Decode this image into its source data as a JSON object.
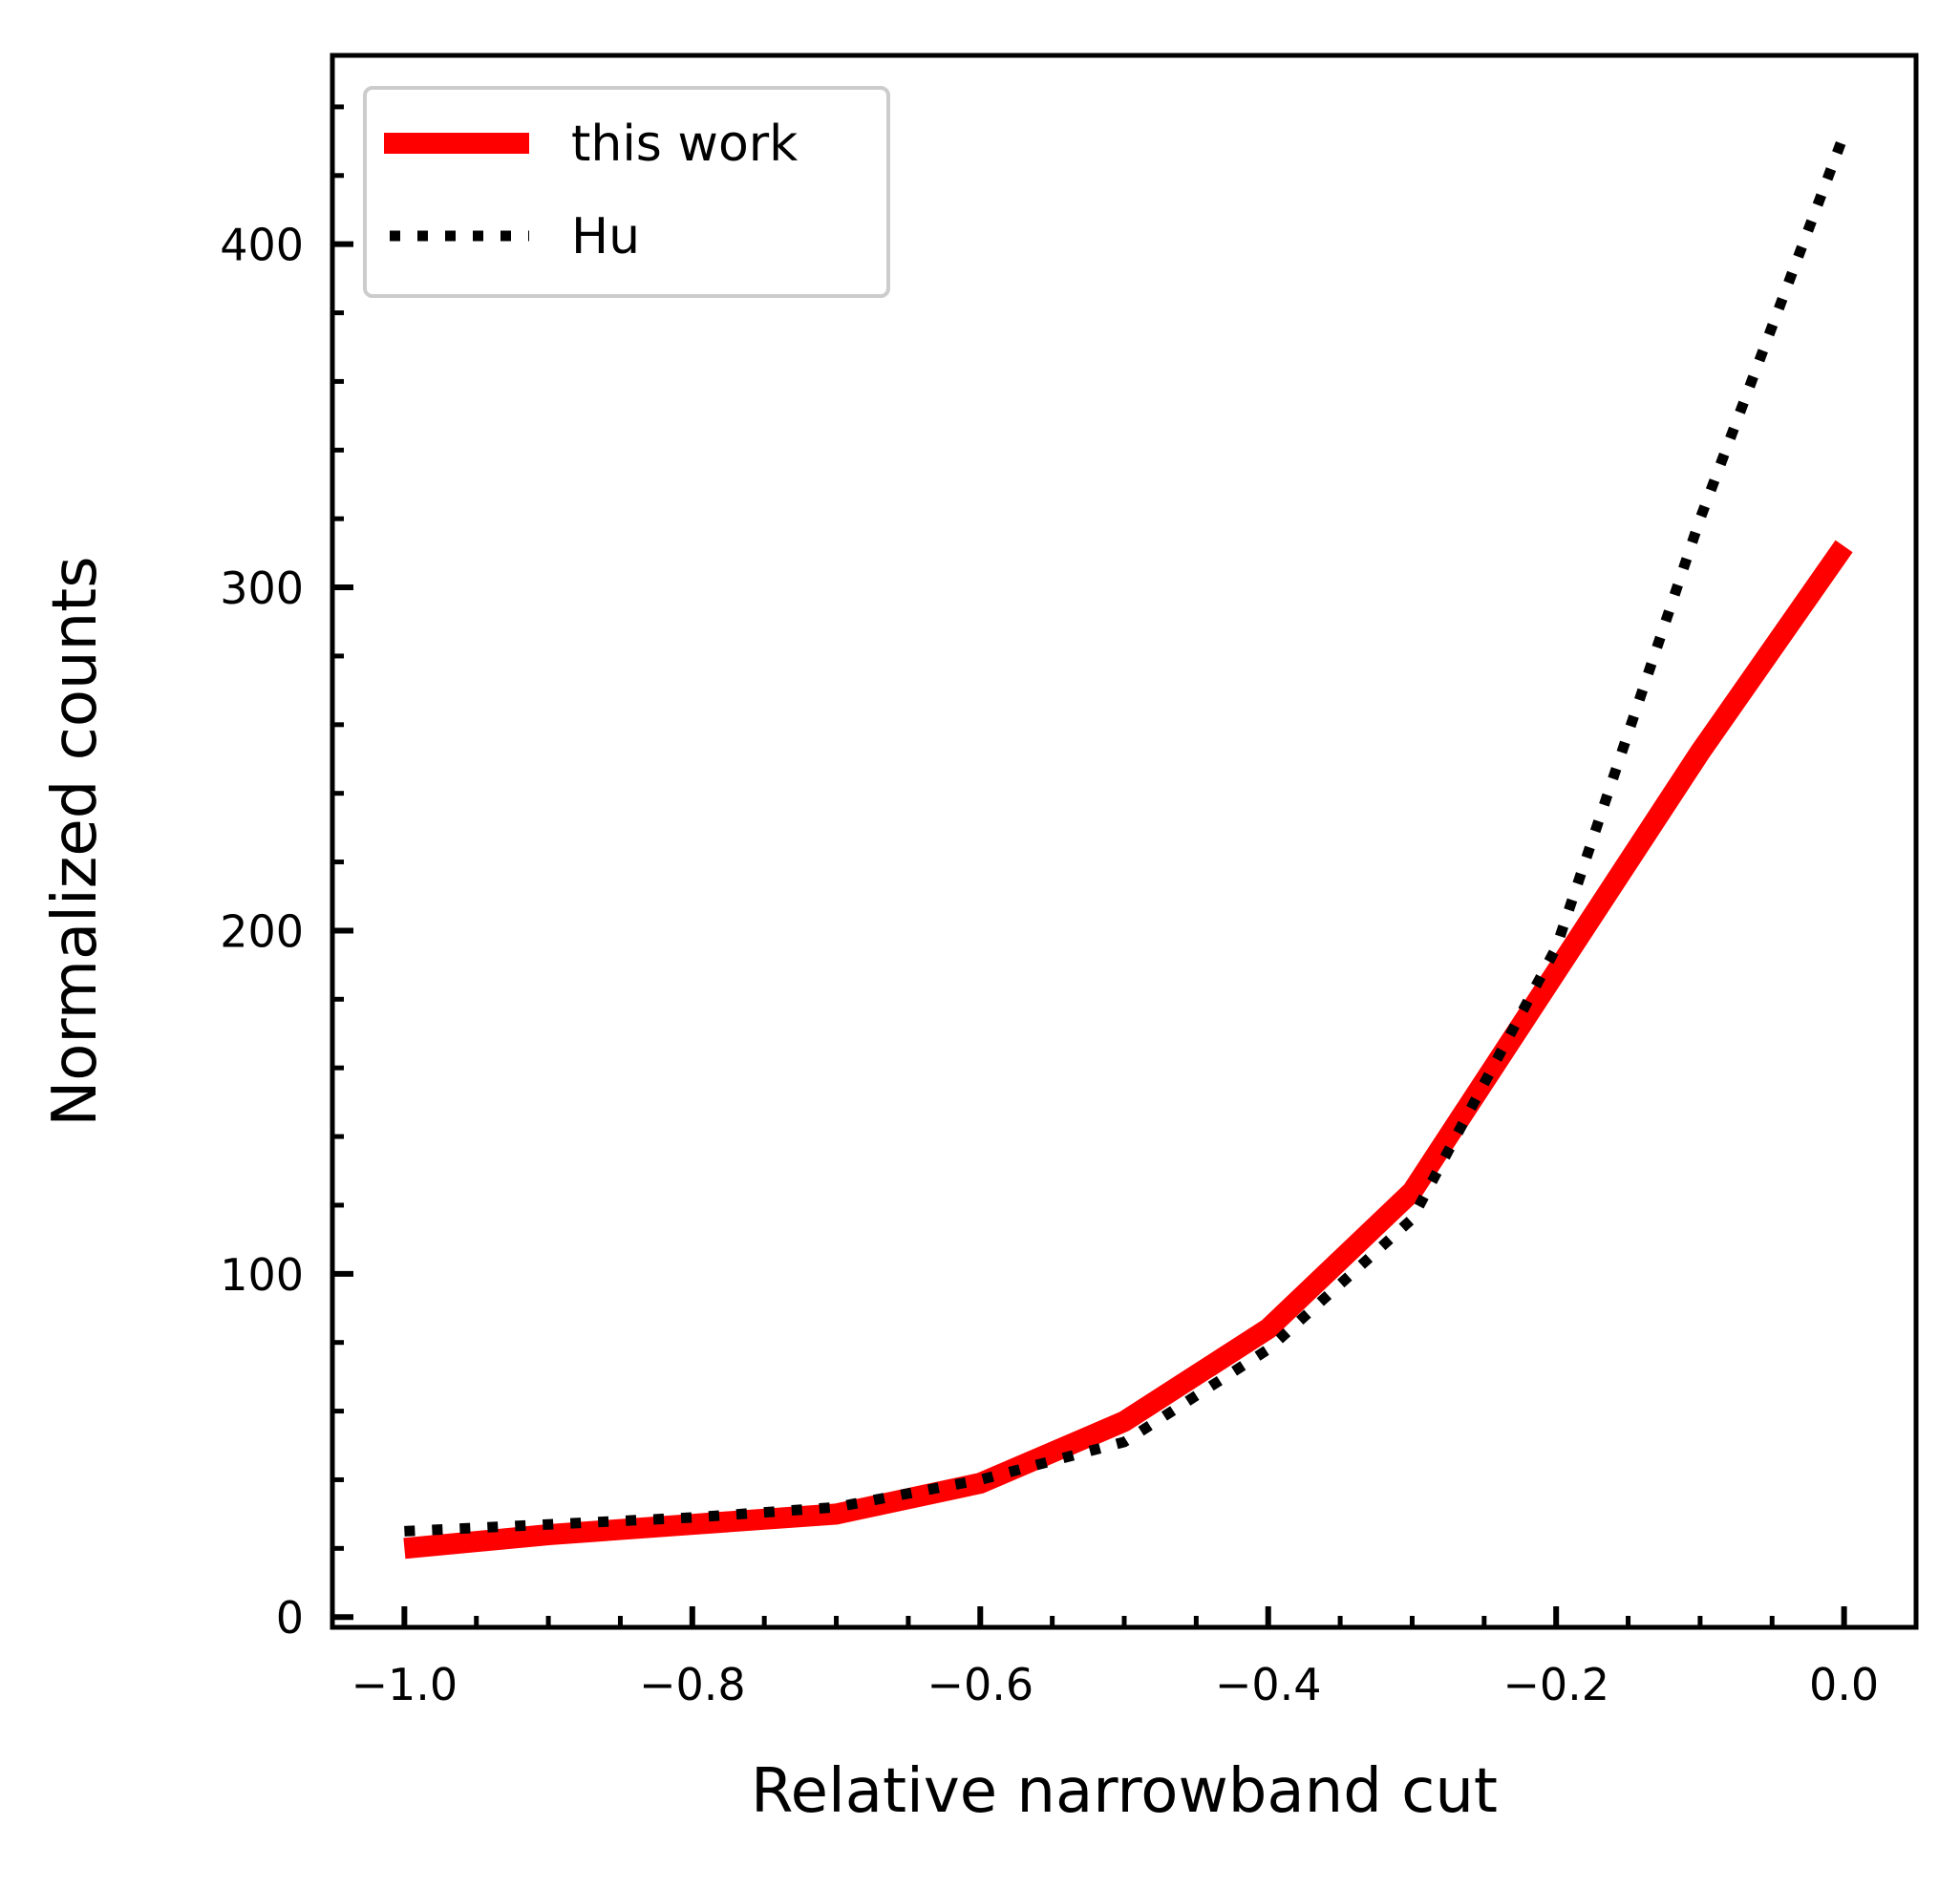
{
  "chart_data": {
    "type": "line",
    "title": "",
    "xlabel": "Relative narrowband cut",
    "ylabel": "Normalized counts",
    "xlim": [
      -1.05,
      0.05
    ],
    "ylim": [
      -3,
      455
    ],
    "xticks": [
      -1.0,
      -0.8,
      -0.6,
      -0.4,
      -0.2,
      0.0
    ],
    "xtick_labels": [
      "−1.0",
      "−0.8",
      "−0.6",
      "−0.4",
      "−0.2",
      "0.0"
    ],
    "yticks": [
      0,
      100,
      200,
      300,
      400
    ],
    "ytick_labels": [
      "0",
      "100",
      "200",
      "300",
      "400"
    ],
    "x_minor_step": 0.05,
    "y_minor_step": 20,
    "grid": false,
    "legend_position": "top-left",
    "series": [
      {
        "name": "this work",
        "color": "#ff0000",
        "style": "solid",
        "x": [
          -1.0,
          -0.9,
          -0.8,
          -0.7,
          -0.6,
          -0.5,
          -0.4,
          -0.3,
          -0.2,
          -0.1,
          0.0
        ],
        "y": [
          20,
          24,
          27,
          30,
          39,
          57,
          84,
          124,
          188,
          252,
          312
        ]
      },
      {
        "name": "Hu",
        "color": "#000000",
        "style": "dotted",
        "x": [
          -1.0,
          -0.9,
          -0.8,
          -0.7,
          -0.6,
          -0.5,
          -0.4,
          -0.3,
          -0.2,
          -0.1,
          0.0
        ],
        "y": [
          25,
          27,
          29,
          32,
          40,
          51,
          78,
          116,
          195,
          320,
          432
        ]
      }
    ]
  }
}
